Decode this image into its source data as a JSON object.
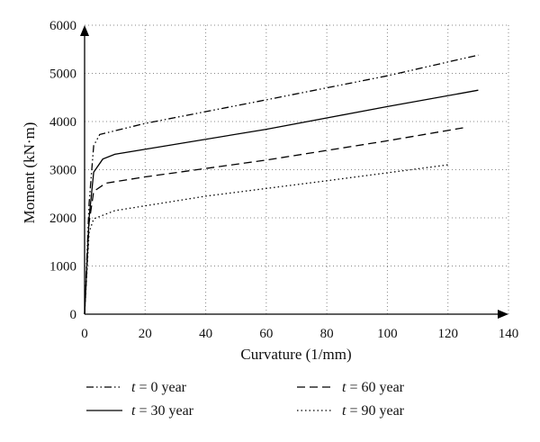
{
  "chart_data": {
    "type": "line",
    "title": "",
    "xlabel": "Curvature (1/mm)",
    "ylabel": "Moment (kN·m)",
    "xlim": [
      0,
      140
    ],
    "ylim": [
      0,
      6000
    ],
    "xticks": [
      0,
      20,
      40,
      60,
      80,
      100,
      120,
      140
    ],
    "yticks": [
      0,
      1000,
      2000,
      3000,
      4000,
      5000,
      6000
    ],
    "grid": true,
    "legend_position": "bottom",
    "series": [
      {
        "name": "t = 0 year",
        "legend_var": "t",
        "legend_rest": " = 0 year",
        "dash": "dashdotdot",
        "points": [
          [
            0,
            0
          ],
          [
            1.5,
            2300
          ],
          [
            3,
            3500
          ],
          [
            5,
            3730
          ],
          [
            20,
            3960
          ],
          [
            60,
            4450
          ],
          [
            100,
            4950
          ],
          [
            130,
            5380
          ]
        ]
      },
      {
        "name": "t = 30 year",
        "legend_var": "t",
        "legend_rest": " = 30 year",
        "dash": "solid",
        "points": [
          [
            0,
            0
          ],
          [
            1.5,
            2000
          ],
          [
            3,
            2950
          ],
          [
            6,
            3220
          ],
          [
            10,
            3320
          ],
          [
            60,
            3840
          ],
          [
            100,
            4310
          ],
          [
            130,
            4650
          ]
        ]
      },
      {
        "name": "t = 60 year",
        "legend_var": "t",
        "legend_rest": " = 60 year",
        "dash": "dashed",
        "points": [
          [
            0,
            0
          ],
          [
            1.5,
            1900
          ],
          [
            3,
            2550
          ],
          [
            7,
            2720
          ],
          [
            20,
            2850
          ],
          [
            60,
            3200
          ],
          [
            100,
            3600
          ],
          [
            125,
            3870
          ]
        ]
      },
      {
        "name": "t = 90 year",
        "legend_var": "t",
        "legend_rest": " = 90 year",
        "dash": "dotted",
        "points": [
          [
            0,
            0
          ],
          [
            1.5,
            1700
          ],
          [
            3,
            1980
          ],
          [
            10,
            2150
          ],
          [
            40,
            2450
          ],
          [
            80,
            2770
          ],
          [
            120,
            3100
          ]
        ]
      }
    ]
  }
}
